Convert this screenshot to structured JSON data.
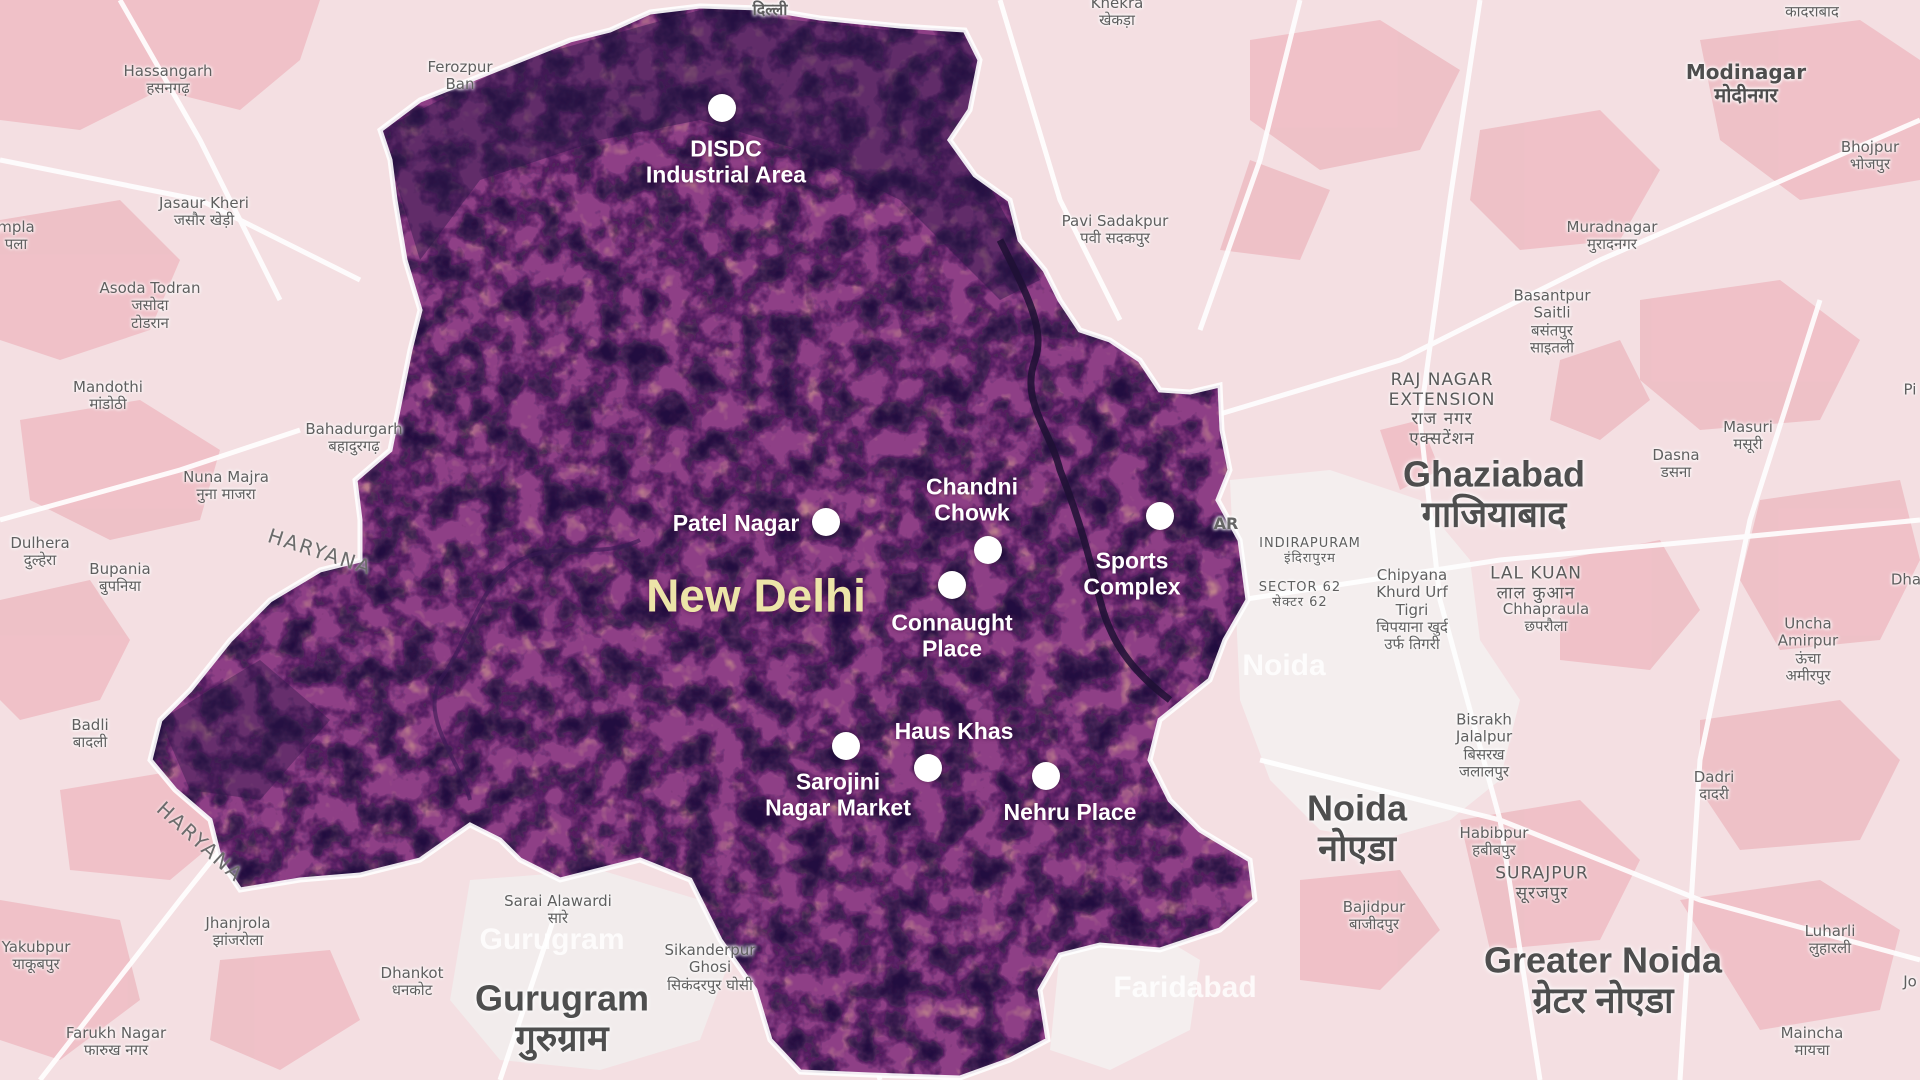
{
  "map": {
    "title": "New Delhi",
    "places": [
      {
        "id": "hassangarh",
        "name": "Hassangarh",
        "hindi": "हसनगढ़"
      },
      {
        "id": "ferozpur",
        "name": "Ferozpur",
        "hindi": "Ban"
      },
      {
        "id": "khekra",
        "name": "Khekra",
        "hindi": "खेकड़ा"
      },
      {
        "id": "kadrabad",
        "name": "",
        "hindi": "कादराबाद"
      },
      {
        "id": "jasaur",
        "name": "Jasaur Kheri",
        "hindi": "जसौर खेड़ी"
      },
      {
        "id": "mpla",
        "name": "mpla",
        "hindi": "पला"
      },
      {
        "id": "asoda",
        "name": "Asoda Todran",
        "hindi": "जसोदा टोडरान"
      },
      {
        "id": "mandothi",
        "name": "Mandothi",
        "hindi": "मांडोठी"
      },
      {
        "id": "bahadurgarh",
        "name": "Bahadurgarh",
        "hindi": "बहादुरगढ़"
      },
      {
        "id": "nunamajra",
        "name": "Nuna Majra",
        "hindi": "नुना माजरा"
      },
      {
        "id": "dulhera",
        "name": "Dulhera",
        "hindi": "दुल्हेरा"
      },
      {
        "id": "bupania",
        "name": "Bupania",
        "hindi": "बुपनिया"
      },
      {
        "id": "badli",
        "name": "Badli",
        "hindi": "बादली"
      },
      {
        "id": "jhanjrola",
        "name": "Jhanjrola",
        "hindi": "झांजरोला"
      },
      {
        "id": "yakubpur",
        "name": "Yakubpur",
        "hindi": "याकूबपुर"
      },
      {
        "id": "dhankot",
        "name": "Dhankot",
        "hindi": "धनकोट"
      },
      {
        "id": "farukh",
        "name": "Farukh Nagar",
        "hindi": "फारुख नगर"
      },
      {
        "id": "sarai",
        "name": "Sarai Alawardi",
        "hindi": "सारे"
      },
      {
        "id": "sikanderpur",
        "name": "Sikanderpur Ghosi",
        "hindi": "सिकंदरपुर घोसी"
      },
      {
        "id": "modinagar",
        "name": "Modinagar",
        "hindi": "मोदीनगर"
      },
      {
        "id": "bhojpur",
        "name": "Bhojpur",
        "hindi": "भोजपुर"
      },
      {
        "id": "pavi",
        "name": "Pavi Sadakpur",
        "hindi": "पवी सदकपुर"
      },
      {
        "id": "muradnagar",
        "name": "Muradnagar",
        "hindi": "मुरादनगर"
      },
      {
        "id": "basantpur",
        "name": "Basantpur Saitli",
        "hindi": "बसंतपुर साइतली"
      },
      {
        "id": "masuri",
        "name": "Masuri",
        "hindi": "मसूरी"
      },
      {
        "id": "dasna",
        "name": "Dasna",
        "hindi": "डसना"
      },
      {
        "id": "indirapuram",
        "name": "INDIRAPURAM",
        "hindi": "इंदिरापुरम"
      },
      {
        "id": "sector62",
        "name": "SECTOR 62",
        "hindi": "सेक्टर 62"
      },
      {
        "id": "chipyana",
        "name": "Chipyana Khurd Urf Tigri",
        "hindi": "चिपयाना खुर्द उर्फ तिगरी"
      },
      {
        "id": "chhaprauli",
        "name": "Chhapraula",
        "hindi": "छपरौला"
      },
      {
        "id": "ucha",
        "name": "Uncha Amirpur",
        "hindi": "ऊंचा अमीरपुर"
      },
      {
        "id": "bisrakh",
        "name": "Bisrakh Jalalpur",
        "hindi": "बिसरख जलालपुर"
      },
      {
        "id": "dadri",
        "name": "Dadri",
        "hindi": "दादरी"
      },
      {
        "id": "habibpur",
        "name": "Habibpur",
        "hindi": "हबीबपुर"
      },
      {
        "id": "bajidpur",
        "name": "Bajidpur",
        "hindi": "बाजीदपुर"
      },
      {
        "id": "luharli",
        "name": "Luharli",
        "hindi": "लुहारली"
      },
      {
        "id": "maincha",
        "name": "Maincha",
        "hindi": "मायचा"
      },
      {
        "id": "pi",
        "name": "Pi",
        "hindi": ""
      },
      {
        "id": "dha",
        "name": "Dha",
        "hindi": ""
      },
      {
        "id": "jo",
        "name": "Jo",
        "hindi": ""
      }
    ],
    "areas": [
      {
        "id": "rajnagar",
        "name": "RAJ NAGAR EXTENSION",
        "hindi": "राज नगर एक्सटेंशन"
      },
      {
        "id": "lalkuan",
        "name": "LAL KUAN",
        "hindi": "लाल कुआन"
      },
      {
        "id": "surajpur",
        "name": "SURAJPUR",
        "hindi": "सूरजपुर"
      }
    ],
    "cities": [
      {
        "id": "ghaziabad",
        "name": "Ghaziabad",
        "hindi": "गाजियाबाद"
      },
      {
        "id": "noida",
        "name": "Noida",
        "hindi": "नोएडा"
      },
      {
        "id": "greaternoida",
        "name": "Greater Noida",
        "hindi": "ग्रेटर नोएडा"
      },
      {
        "id": "gurugram",
        "name": "Gurugram",
        "hindi": "गुरुग्राम"
      }
    ],
    "ghost_labels": [
      {
        "id": "g-noida",
        "text": "Noida"
      },
      {
        "id": "g-gurugram",
        "text": "Gurugram"
      },
      {
        "id": "g-faridabad",
        "text": "Faridabad"
      },
      {
        "id": "g-ar",
        "text": "AR"
      },
      {
        "id": "g-dli",
        "text": "दिल्ली"
      }
    ],
    "states": [
      {
        "id": "haryana1",
        "text": "HARYANA"
      },
      {
        "id": "haryana2",
        "text": "HARYANA"
      }
    ],
    "points_of_interest": [
      {
        "id": "disdc",
        "lines": [
          "DISDC",
          "Industrial Area"
        ]
      },
      {
        "id": "patel",
        "lines": [
          "Patel Nagar"
        ]
      },
      {
        "id": "chandni",
        "lines": [
          "Chandni",
          "Chowk"
        ]
      },
      {
        "id": "connaught",
        "lines": [
          "Connaught",
          "Place"
        ]
      },
      {
        "id": "sports",
        "lines": [
          "Sports",
          "Complex"
        ]
      },
      {
        "id": "haus",
        "lines": [
          "Haus Khas"
        ]
      },
      {
        "id": "sarojini",
        "lines": [
          "Sarojini",
          "Nagar Market"
        ]
      },
      {
        "id": "nehru",
        "lines": [
          "Nehru Place"
        ]
      }
    ],
    "colors": {
      "background": "#f4dfe2",
      "urban_pink": "#eebcc3",
      "raster_mid": "#8e3f86",
      "raster_dark": "#2a1646",
      "raster_light": "#d9a98f",
      "poi_marker": "#ffffff",
      "title": "#ece4a8"
    }
  }
}
